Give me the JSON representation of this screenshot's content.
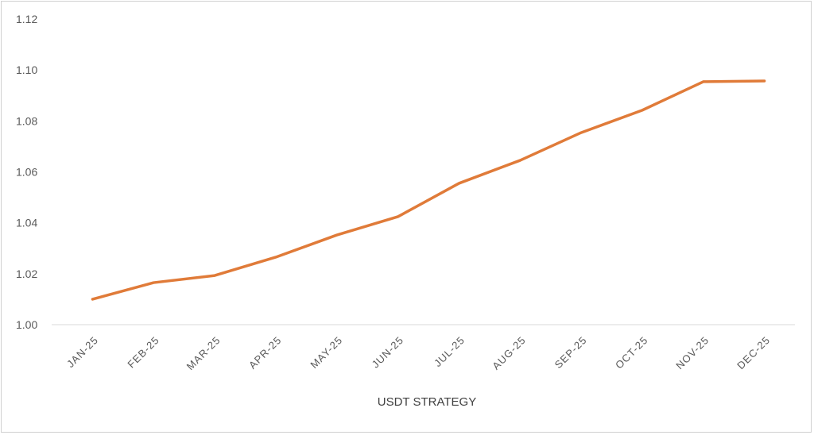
{
  "chart_data": {
    "type": "line",
    "title": "",
    "xlabel": "USDT STRATEGY",
    "ylabel": "",
    "categories": [
      "JAN-25",
      "FEB-25",
      "MAR-25",
      "APR-25",
      "MAY-25",
      "JUN-25",
      "JUL-25",
      "AUG-25",
      "SEP-25",
      "OCT-25",
      "NOV-25",
      "DEC-25"
    ],
    "series": [
      {
        "values": [
          1.01,
          1.0165,
          1.0193,
          1.0265,
          1.0352,
          1.0424,
          1.0555,
          1.0645,
          1.0754,
          1.0842,
          1.0954,
          1.0957
        ],
        "color": "#E07B39"
      }
    ],
    "ylim": [
      1.0,
      1.12
    ],
    "yticks": [
      "1.00",
      "1.02",
      "1.04",
      "1.06",
      "1.08",
      "1.10",
      "1.12"
    ],
    "grid": false,
    "legend": "none"
  }
}
